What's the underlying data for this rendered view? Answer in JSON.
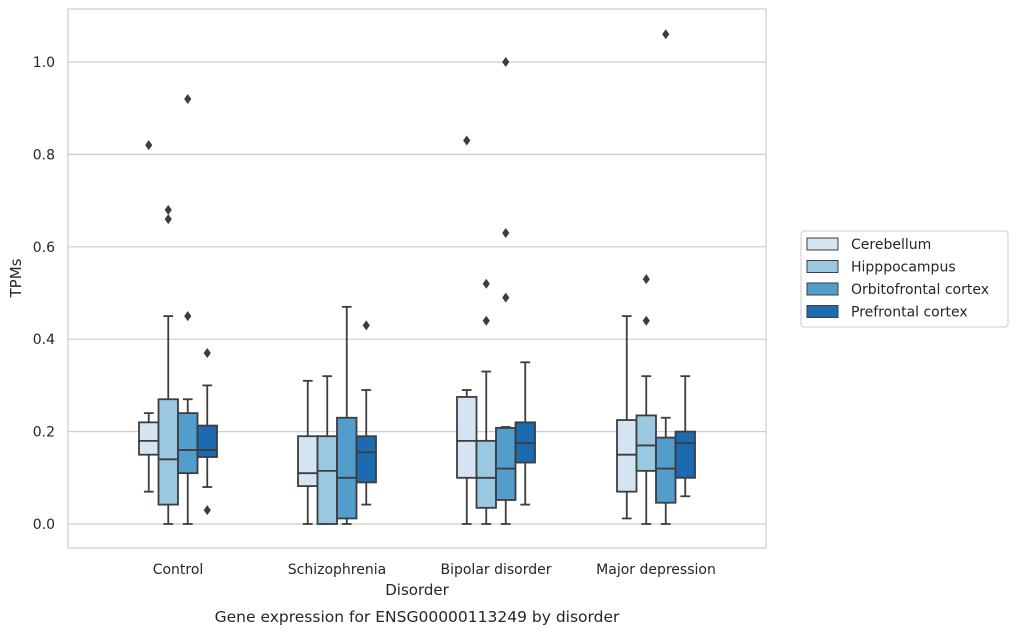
{
  "chart_data": {
    "type": "box",
    "title": "Gene expression for ENSG00000113249 by disorder",
    "xlabel": "Disorder",
    "ylabel": "TPMs",
    "ylim": [
      -0.05,
      1.115
    ],
    "yticks": [
      "0.0",
      "0.2",
      "0.4",
      "0.6",
      "0.8",
      "1.0"
    ],
    "grid": "horizontal",
    "legend_position": "right",
    "categories": [
      "Control",
      "Schizophrenia",
      "Bipolar disorder",
      "Major depression"
    ],
    "series": [
      {
        "name": "Cerebellum",
        "color": "#d3e4f3",
        "boxes": [
          {
            "whislo": 0.07,
            "q1": 0.15,
            "med": 0.18,
            "q3": 0.22,
            "whishi": 0.24,
            "fliers": [
              0.82
            ]
          },
          {
            "whislo": 0.0,
            "q1": 0.082,
            "med": 0.11,
            "q3": 0.19,
            "whishi": 0.31,
            "fliers": []
          },
          {
            "whislo": 0.0,
            "q1": 0.1,
            "med": 0.18,
            "q3": 0.275,
            "whishi": 0.29,
            "fliers": [
              0.83
            ]
          },
          {
            "whislo": 0.012,
            "q1": 0.07,
            "med": 0.15,
            "q3": 0.225,
            "whishi": 0.45,
            "fliers": []
          }
        ]
      },
      {
        "name": "Hipppocampus",
        "color": "#9ac8e0",
        "boxes": [
          {
            "whislo": 0.0,
            "q1": 0.042,
            "med": 0.14,
            "q3": 0.27,
            "whishi": 0.45,
            "fliers": [
              0.66,
              0.68
            ]
          },
          {
            "whislo": 0.0,
            "q1": 0.0,
            "med": 0.115,
            "q3": 0.19,
            "whishi": 0.32,
            "fliers": []
          },
          {
            "whislo": 0.0,
            "q1": 0.035,
            "med": 0.1,
            "q3": 0.18,
            "whishi": 0.33,
            "fliers": [
              0.44,
              0.52
            ]
          },
          {
            "whislo": 0.0,
            "q1": 0.115,
            "med": 0.17,
            "q3": 0.235,
            "whishi": 0.32,
            "fliers": [
              0.44,
              0.53
            ]
          }
        ]
      },
      {
        "name": "Orbitofrontal cortex",
        "color": "#529dcc",
        "boxes": [
          {
            "whislo": 0.0,
            "q1": 0.11,
            "med": 0.16,
            "q3": 0.24,
            "whishi": 0.27,
            "fliers": [
              0.45,
              0.92
            ]
          },
          {
            "whislo": 0.0,
            "q1": 0.012,
            "med": 0.1,
            "q3": 0.23,
            "whishi": 0.47,
            "fliers": []
          },
          {
            "whislo": 0.0,
            "q1": 0.052,
            "med": 0.12,
            "q3": 0.208,
            "whishi": 0.21,
            "fliers": [
              0.49,
              0.63,
              1.0
            ]
          },
          {
            "whislo": 0.0,
            "q1": 0.046,
            "med": 0.12,
            "q3": 0.187,
            "whishi": 0.23,
            "fliers": [
              1.06
            ]
          }
        ]
      },
      {
        "name": "Prefrontal cortex",
        "color": "#1c6aaf",
        "boxes": [
          {
            "whislo": 0.08,
            "q1": 0.145,
            "med": 0.16,
            "q3": 0.213,
            "whishi": 0.3,
            "fliers": [
              0.03,
              0.37
            ]
          },
          {
            "whislo": 0.042,
            "q1": 0.09,
            "med": 0.155,
            "q3": 0.19,
            "whishi": 0.29,
            "fliers": [
              0.43
            ]
          },
          {
            "whislo": 0.042,
            "q1": 0.133,
            "med": 0.175,
            "q3": 0.22,
            "whishi": 0.35,
            "fliers": []
          },
          {
            "whislo": 0.06,
            "q1": 0.1,
            "med": 0.175,
            "q3": 0.2,
            "whishi": 0.32,
            "fliers": []
          }
        ]
      }
    ]
  },
  "colors": {
    "grid": "#cccccc",
    "spine": "#cccccc",
    "line": "#3d3d3d",
    "text": "#262626"
  }
}
